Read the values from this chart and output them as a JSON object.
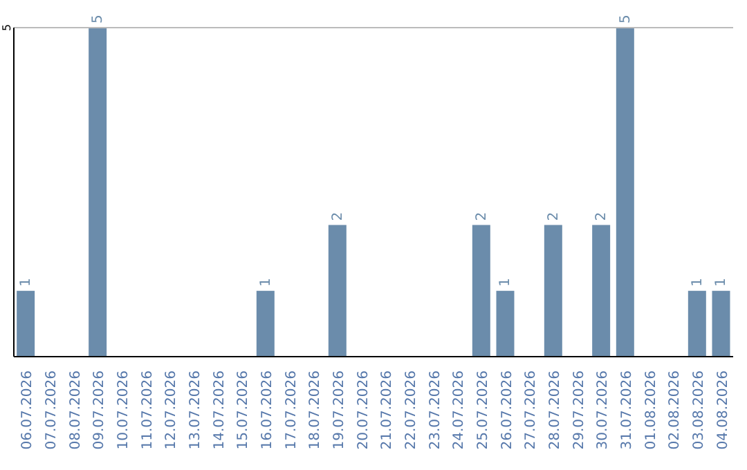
{
  "chart_data": {
    "type": "bar",
    "categories": [
      "06.07.2026",
      "07.07.2026",
      "08.07.2026",
      "09.07.2026",
      "10.07.2026",
      "11.07.2026",
      "12.07.2026",
      "13.07.2026",
      "14.07.2026",
      "15.07.2026",
      "16.07.2026",
      "17.07.2026",
      "18.07.2026",
      "19.07.2026",
      "20.07.2026",
      "21.07.2026",
      "22.07.2026",
      "23.07.2026",
      "24.07.2026",
      "25.07.2026",
      "26.07.2026",
      "27.07.2026",
      "28.07.2026",
      "29.07.2026",
      "30.07.2026",
      "31.07.2026",
      "01.08.2026",
      "02.08.2026",
      "03.08.2026",
      "04.08.2026"
    ],
    "values": [
      1,
      0,
      0,
      5,
      0,
      0,
      0,
      0,
      0,
      0,
      1,
      0,
      0,
      2,
      0,
      0,
      0,
      0,
      0,
      2,
      1,
      0,
      2,
      0,
      2,
      5,
      0,
      0,
      1,
      1
    ],
    "value_labels": [
      "1",
      null,
      null,
      "5",
      null,
      null,
      null,
      null,
      null,
      null,
      "1",
      null,
      null,
      "2",
      null,
      null,
      null,
      null,
      null,
      "2",
      "1",
      null,
      "2",
      null,
      "2",
      "5",
      null,
      null,
      "1",
      "1"
    ],
    "color": "#6b8cab",
    "ylim": [
      0,
      5
    ],
    "yticks": [
      5
    ]
  }
}
